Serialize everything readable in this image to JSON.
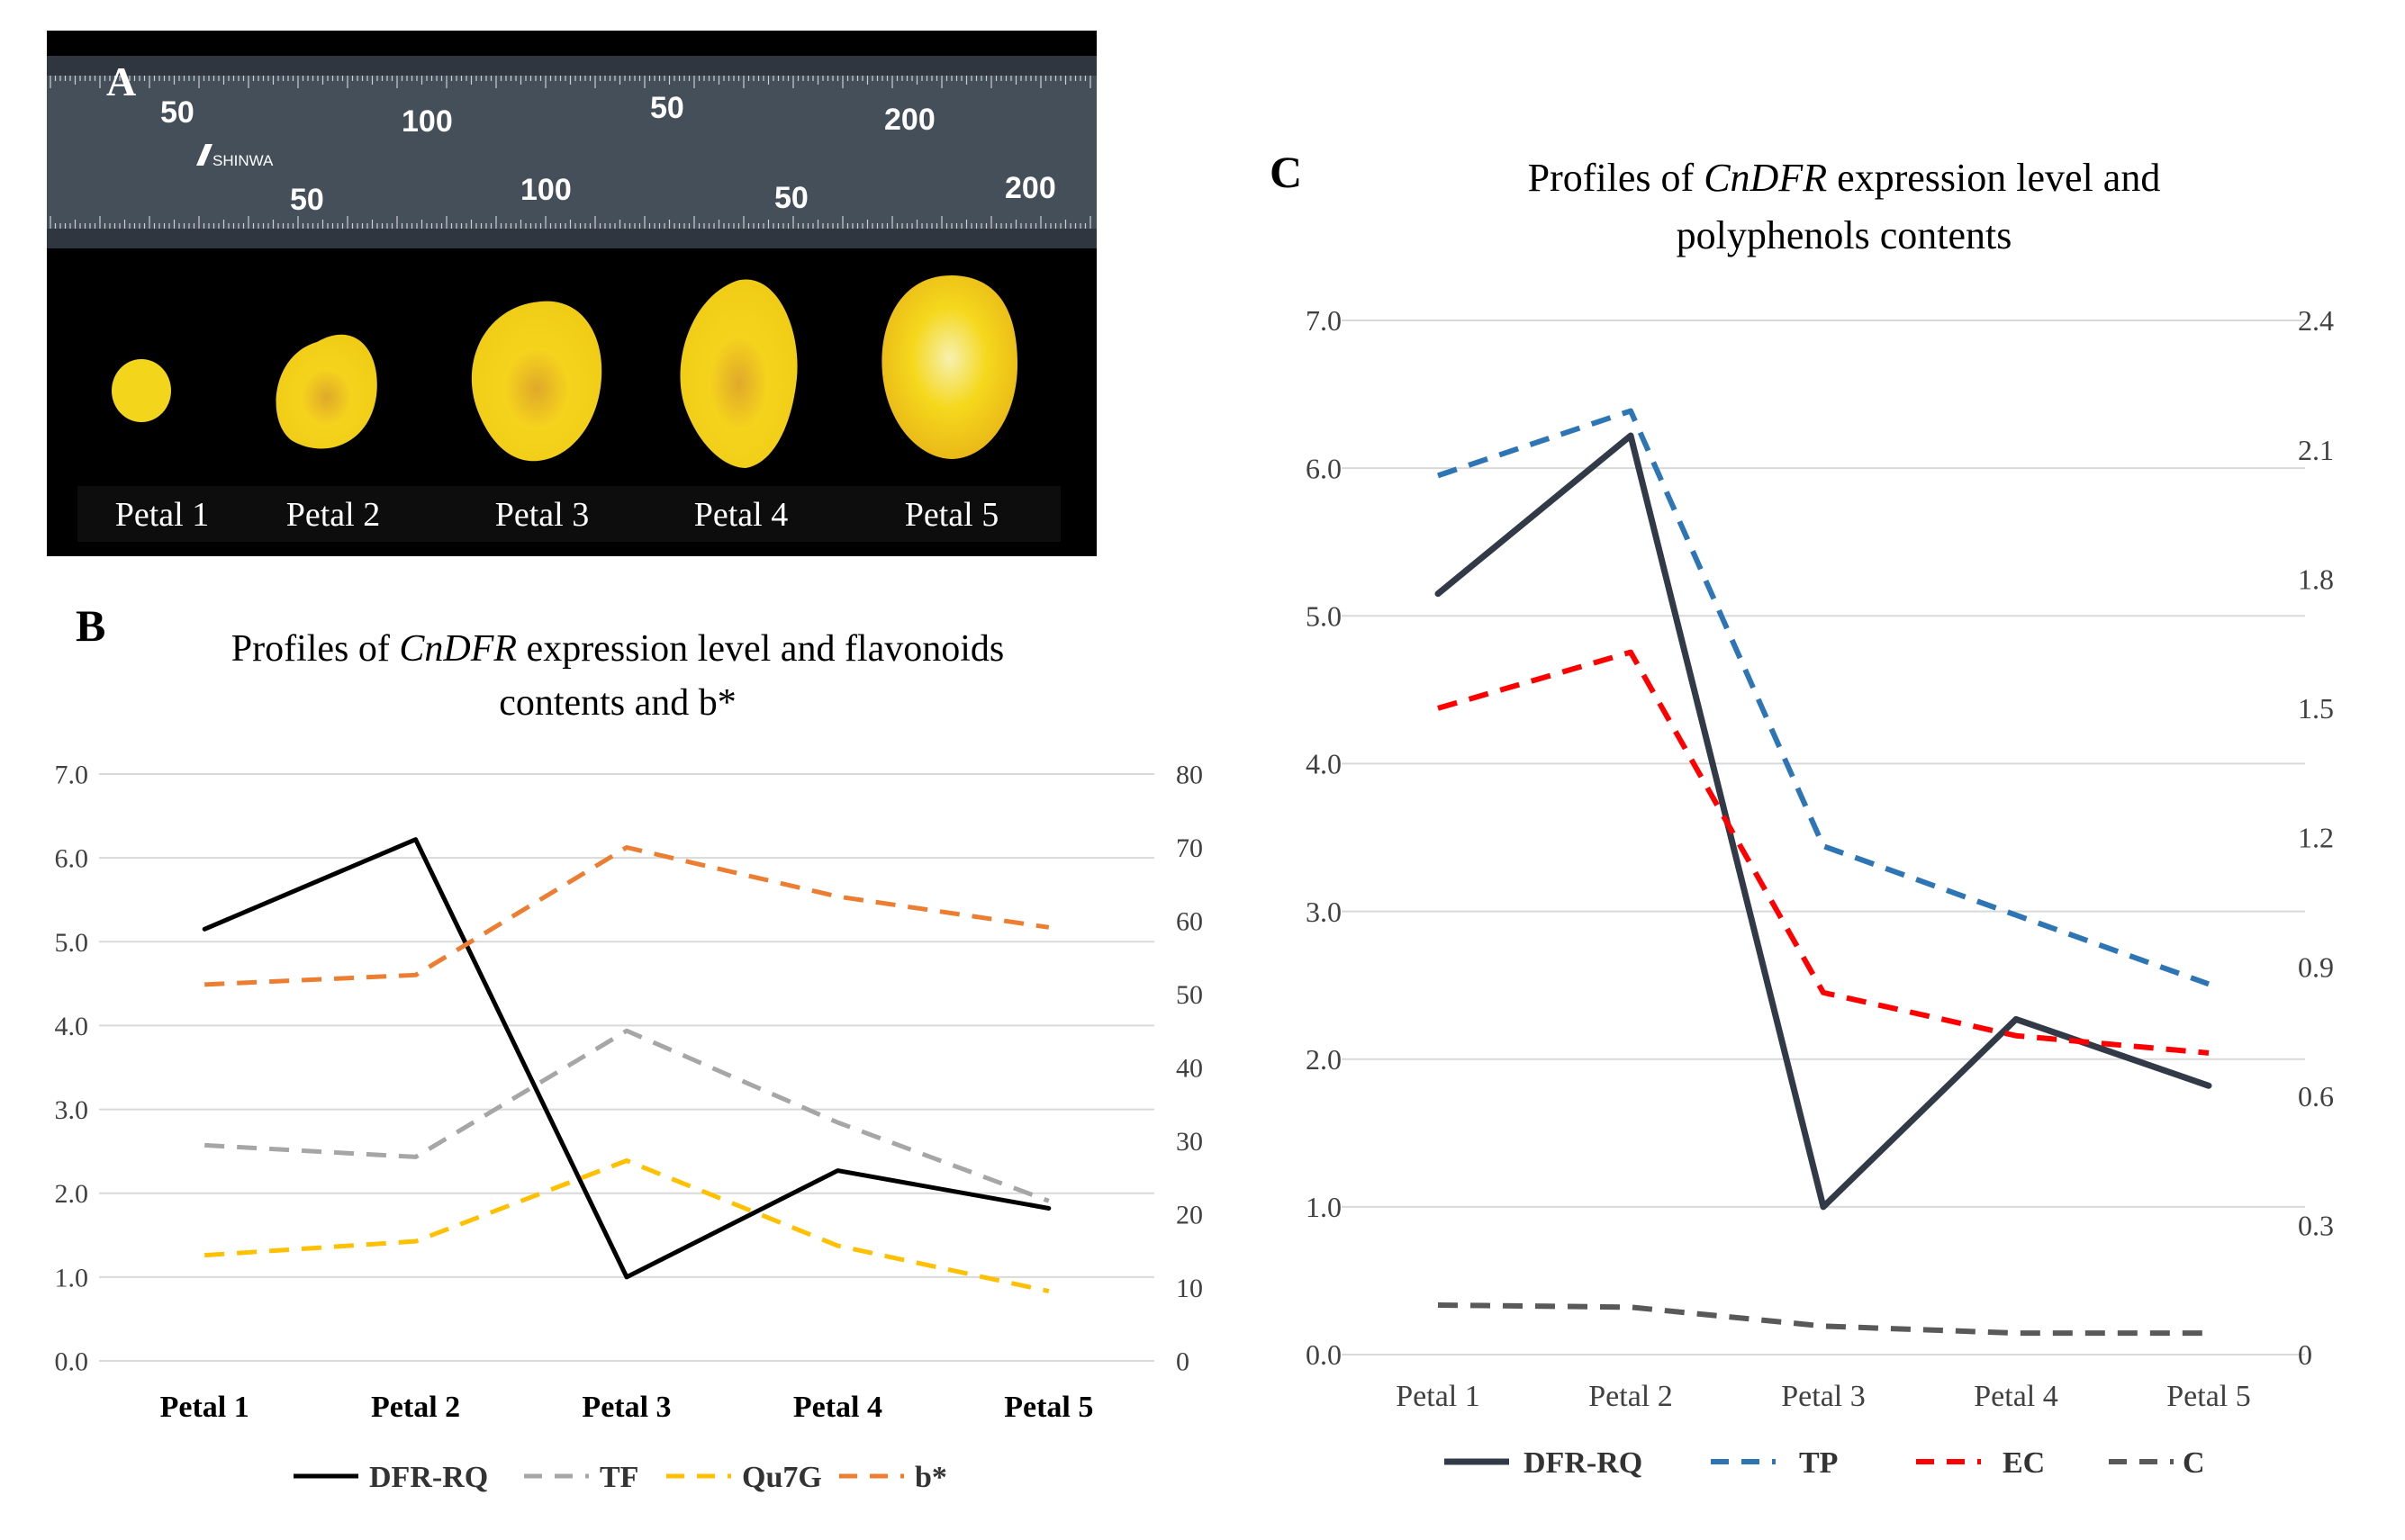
{
  "panel_labels": {
    "a": "A",
    "b": "B",
    "c": "C"
  },
  "photo": {
    "brand": "SHINWA",
    "ruler_big_top": [
      "50",
      "100",
      "50",
      "200"
    ],
    "ruler_big_bottom": [
      "50",
      "100",
      "50",
      "200"
    ],
    "petal_labels": [
      "Petal 1",
      "Petal 2",
      "Petal 3",
      "Petal 4",
      "Petal 5"
    ],
    "colors": {
      "background": "#000000",
      "ruler": "#454f5a",
      "petal": "#f2d01a",
      "petal_center": "#d6a92e"
    }
  },
  "chart_data": [
    {
      "type": "line",
      "panel": "B",
      "title_prefix": "Profiles of ",
      "title_gene": "CnDFR",
      "title_line1_rest": " expression level and flavonoids",
      "title_line2": "contents and b*",
      "categories": [
        "Petal 1",
        "Petal 2",
        "Petal 3",
        "Petal 4",
        "Petal 5"
      ],
      "y_left": {
        "min": 0,
        "max": 7,
        "ticks": [
          "0.0",
          "1.0",
          "2.0",
          "3.0",
          "4.0",
          "5.0",
          "6.0",
          "7.0"
        ]
      },
      "y_right": {
        "min": 0,
        "max": 80,
        "ticks": [
          "0",
          "10",
          "20",
          "30",
          "40",
          "50",
          "60",
          "70",
          "80"
        ]
      },
      "series": [
        {
          "name": "DFR-RQ",
          "axis": "left",
          "style": "solid",
          "color": "#000000",
          "values": [
            5.15,
            6.22,
            1.0,
            2.27,
            1.82
          ]
        },
        {
          "name": "TF",
          "axis": "right",
          "style": "dashed",
          "color": "#a6a6a6",
          "values": [
            29.4,
            27.8,
            45.0,
            32.5,
            21.8
          ]
        },
        {
          "name": "Qu7G",
          "axis": "right",
          "style": "dashed",
          "color": "#ffc000",
          "values": [
            14.4,
            16.3,
            27.3,
            15.7,
            9.5
          ]
        },
        {
          "name": "b*",
          "axis": "right",
          "style": "dashed",
          "color": "#ed7d31",
          "values": [
            51.3,
            52.6,
            70.0,
            63.3,
            59.1
          ]
        }
      ]
    },
    {
      "type": "line",
      "panel": "C",
      "title_prefix": "Profiles of ",
      "title_gene": "CnDFR",
      "title_line1_rest": " expression level and",
      "title_line2": "polyphenols contents",
      "categories": [
        "Petal 1",
        "Petal 2",
        "Petal 3",
        "Petal 4",
        "Petal 5"
      ],
      "y_left": {
        "min": 0,
        "max": 7,
        "ticks": [
          "0.0",
          "1.0",
          "2.0",
          "3.0",
          "4.0",
          "5.0",
          "6.0",
          "7.0"
        ]
      },
      "y_right": {
        "min": 0,
        "max": 2.4,
        "ticks": [
          "0",
          "0.3",
          "0.6",
          "0.9",
          "1.2",
          "1.5",
          "1.8",
          "2.1",
          "2.4"
        ]
      },
      "series": [
        {
          "name": "DFR-RQ",
          "axis": "left",
          "style": "solid",
          "color": "#323a48",
          "values": [
            5.15,
            6.22,
            1.0,
            2.27,
            1.82
          ]
        },
        {
          "name": "TP",
          "axis": "right",
          "style": "dashed",
          "color": "#2e75b6",
          "values": [
            2.04,
            2.19,
            1.18,
            1.02,
            0.86
          ]
        },
        {
          "name": "EC",
          "axis": "right",
          "style": "dashed",
          "color": "#ff0000",
          "values": [
            1.5,
            1.63,
            0.84,
            0.74,
            0.7
          ]
        },
        {
          "name": "C",
          "axis": "right",
          "style": "dashed",
          "color": "#595959",
          "values": [
            0.115,
            0.11,
            0.066,
            0.05,
            0.05
          ]
        }
      ]
    }
  ]
}
